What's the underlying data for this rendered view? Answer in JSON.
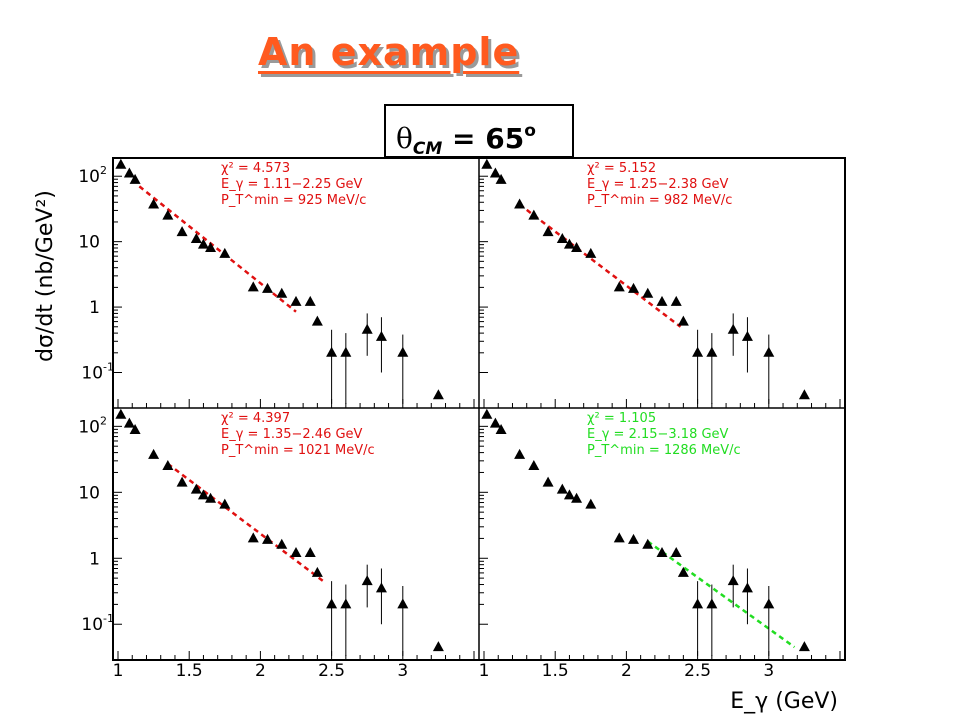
{
  "slide": {
    "title": "An example",
    "cm_label": {
      "symbol": "θ",
      "subscript": "CM",
      "equals": " = 65",
      "superscript": "o"
    }
  },
  "colors": {
    "title": "#ff5a1f",
    "fit_red": "#e01010",
    "fit_green": "#22dd22",
    "data": "#000000"
  },
  "chart_data": {
    "type": "scatter",
    "layout": "2x2 panels sharing axes",
    "xlabel": "E_γ (GeV)",
    "ylabel": "dσ/dt (nb/GeV²)",
    "y_scale": "log",
    "xlim": [
      1.0,
      3.5
    ],
    "ylim": [
      0.033,
      165
    ],
    "x_ticks": [
      "1",
      "1.5",
      "2",
      "2.5",
      "3"
    ],
    "y_ticks": [
      {
        "v": 100,
        "base": "10",
        "exp": "2"
      },
      {
        "v": 10,
        "base": "10",
        "exp": ""
      },
      {
        "v": 1,
        "base": "1",
        "exp": ""
      },
      {
        "v": 0.1,
        "base": "10",
        "exp": "-1"
      }
    ],
    "data_points": [
      {
        "x": 1.02,
        "y": 150,
        "lo": 150,
        "hi": 150
      },
      {
        "x": 1.08,
        "y": 110,
        "lo": 110,
        "hi": 110
      },
      {
        "x": 1.12,
        "y": 88,
        "lo": 88,
        "hi": 88
      },
      {
        "x": 1.25,
        "y": 37,
        "lo": 37,
        "hi": 37
      },
      {
        "x": 1.35,
        "y": 25,
        "lo": 25,
        "hi": 25
      },
      {
        "x": 1.45,
        "y": 14,
        "lo": 14,
        "hi": 14
      },
      {
        "x": 1.55,
        "y": 11,
        "lo": 11,
        "hi": 11
      },
      {
        "x": 1.6,
        "y": 9,
        "lo": 9,
        "hi": 9
      },
      {
        "x": 1.65,
        "y": 8,
        "lo": 8,
        "hi": 8
      },
      {
        "x": 1.75,
        "y": 6.5,
        "lo": 6.5,
        "hi": 6.5
      },
      {
        "x": 1.95,
        "y": 2,
        "lo": 2,
        "hi": 2
      },
      {
        "x": 2.05,
        "y": 1.9,
        "lo": 1.9,
        "hi": 1.9
      },
      {
        "x": 2.15,
        "y": 1.6,
        "lo": 1.6,
        "hi": 1.6
      },
      {
        "x": 2.25,
        "y": 1.2,
        "lo": 1.2,
        "hi": 1.2
      },
      {
        "x": 2.35,
        "y": 1.2,
        "lo": 1.05,
        "hi": 1.35
      },
      {
        "x": 2.4,
        "y": 0.6,
        "lo": 0.6,
        "hi": 0.6
      },
      {
        "x": 2.5,
        "y": 0.2,
        "lo": 0.033,
        "hi": 0.45
      },
      {
        "x": 2.6,
        "y": 0.2,
        "lo": 0.033,
        "hi": 0.4
      },
      {
        "x": 2.75,
        "y": 0.45,
        "lo": 0.18,
        "hi": 0.8
      },
      {
        "x": 2.85,
        "y": 0.35,
        "lo": 0.1,
        "hi": 0.7
      },
      {
        "x": 3.0,
        "y": 0.2,
        "lo": 0.033,
        "hi": 0.38
      },
      {
        "x": 3.25,
        "y": 0.045,
        "lo": 0.045,
        "hi": 0.045
      }
    ],
    "panels": [
      {
        "chi2": "χ² = 4.573",
        "erange": "E_γ = 1.11−2.25 GeV",
        "ptmin": "P_T^min = 925 MeV/c",
        "fit_color": "red",
        "fit": {
          "x": [
            1.15,
            2.25
          ],
          "y": [
            70,
            0.85
          ]
        }
      },
      {
        "chi2": "χ² = 5.152",
        "erange": "E_γ = 1.25−2.38 GeV",
        "ptmin": "P_T^min = 982 MeV/c",
        "fit_color": "red",
        "fit": {
          "x": [
            1.25,
            2.38
          ],
          "y": [
            37,
            0.5
          ]
        }
      },
      {
        "chi2": "χ² = 4.397",
        "erange": "E_γ = 1.35−2.46 GeV",
        "ptmin": "P_T^min = 1021 MeV/c",
        "fit_color": "red",
        "fit": {
          "x": [
            1.35,
            2.46
          ],
          "y": [
            27,
            0.42
          ]
        }
      },
      {
        "chi2": "χ² = 1.105",
        "erange": "E_γ = 2.15−3.18 GeV",
        "ptmin": "P_T^min = 1286 MeV/c",
        "fit_color": "green",
        "fit": {
          "x": [
            2.15,
            3.18
          ],
          "y": [
            1.8,
            0.045
          ]
        }
      }
    ]
  }
}
